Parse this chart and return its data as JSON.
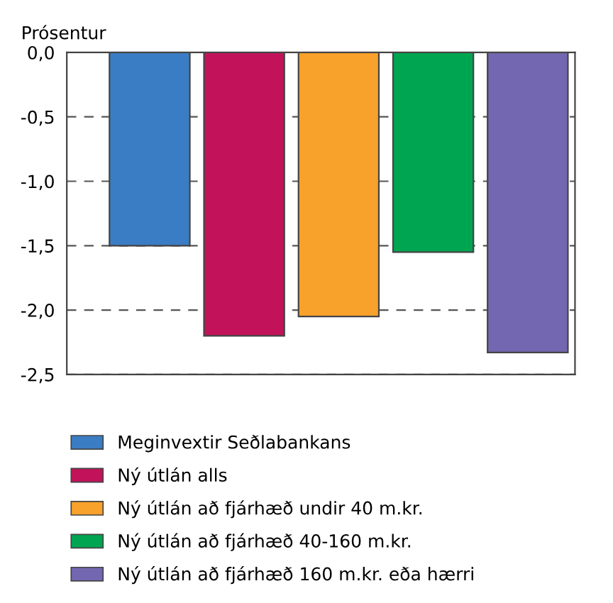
{
  "chart_data": {
    "type": "bar",
    "ylabel": "Prósentur",
    "categories": [
      null
    ],
    "series": [
      {
        "name": "Meginvextir Seðlabankans",
        "color": "#3a7dc4",
        "values": [
          -1.5
        ]
      },
      {
        "name": "Ný útlán alls",
        "color": "#c2135a",
        "values": [
          -2.2
        ]
      },
      {
        "name": "Ný útlán að fjárhæð undir 40 m.kr.",
        "color": "#f8a12b",
        "values": [
          -2.05
        ]
      },
      {
        "name": "Ný útlán að fjárhæð 40-160 m.kr.",
        "color": "#00a551",
        "values": [
          -1.55
        ]
      },
      {
        "name": "Ný útlán að fjárhæð 160 m.kr. eða hærri",
        "color": "#7367b1",
        "values": [
          -2.33
        ]
      }
    ],
    "ylim": [
      -2.5,
      0
    ],
    "yticks": [
      {
        "value": 0,
        "label": "0,0"
      },
      {
        "value": -0.5,
        "label": "-0,5"
      },
      {
        "value": -1.0,
        "label": "-1,0"
      },
      {
        "value": -1.5,
        "label": "-1,5"
      },
      {
        "value": -2.0,
        "label": "-2,0"
      },
      {
        "value": -2.5,
        "label": "-2,5"
      }
    ],
    "grid": "y",
    "legend": "bottom",
    "tick_labels": "y"
  }
}
